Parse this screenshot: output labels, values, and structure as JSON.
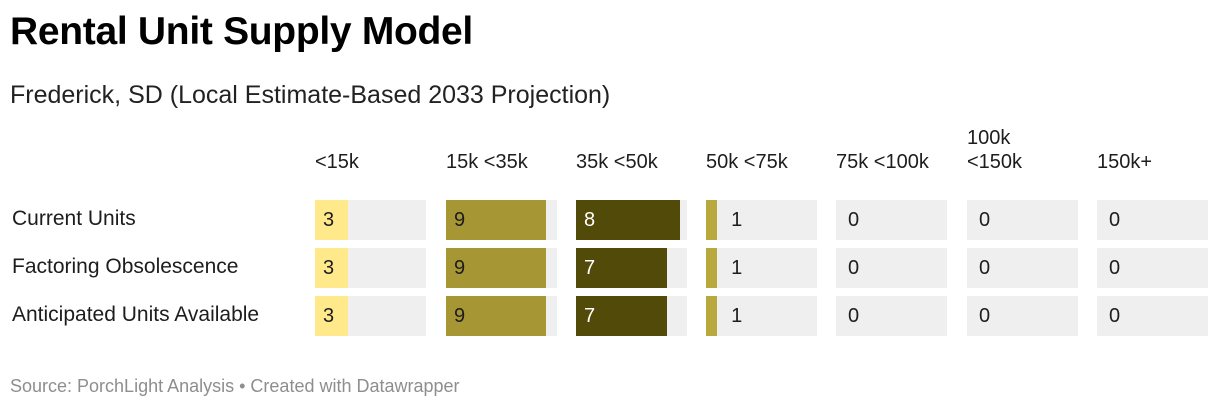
{
  "title": "Rental Unit Supply Model",
  "subtitle": "Frederick, SD (Local Estimate-Based 2033 Projection)",
  "footer": "Source: PorchLight Analysis • Created with Datawrapper",
  "chart_data": {
    "type": "bar",
    "title": "Rental Unit Supply Model",
    "subtitle": "Frederick, SD (Local Estimate-Based 2033 Projection)",
    "categories": [
      "<15k",
      "15k <35k",
      "35k <50k",
      "50k <75k",
      "75k <100k",
      "100k <150k",
      "150k+"
    ],
    "column_header_lines": [
      [
        "<15k"
      ],
      [
        "15k <35k"
      ],
      [
        "35k <50k"
      ],
      [
        "50k <75k"
      ],
      [
        "75k <100k"
      ],
      [
        "100k",
        "<150k"
      ],
      [
        "150k+"
      ]
    ],
    "column_max": [
      10,
      10,
      8.5,
      10,
      10,
      10,
      10
    ],
    "column_colors": [
      "#ffe98a",
      "#a69634",
      "#524a08",
      "#b9a83d",
      "#b9a83d",
      "#b9a83d",
      "#b9a83d"
    ],
    "track_color": "#efefef",
    "series": [
      {
        "name": "Current Units",
        "values": [
          3,
          9,
          8,
          1,
          0,
          0,
          0
        ]
      },
      {
        "name": "Factoring Obsolescence",
        "values": [
          3,
          9,
          7,
          1,
          0,
          0,
          0
        ]
      },
      {
        "name": "Anticipated Units Available",
        "values": [
          3,
          9,
          7,
          1,
          0,
          0,
          0
        ]
      }
    ],
    "xlabel": "",
    "ylabel": "",
    "grid": false,
    "legend": "none"
  }
}
